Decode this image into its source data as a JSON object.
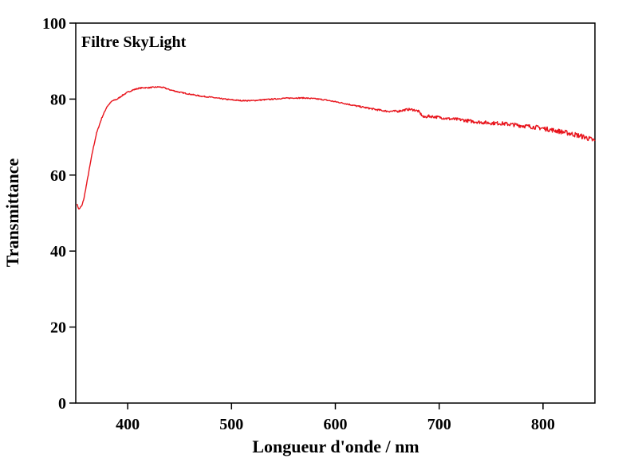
{
  "chart_data": {
    "type": "line",
    "annotation": "Filtre SkyLight",
    "xlabel": "Longueur d'onde / nm",
    "ylabel": "Transmittance",
    "xlim": [
      350,
      850
    ],
    "ylim": [
      0,
      100
    ],
    "x_ticks": [
      400,
      500,
      600,
      700,
      800
    ],
    "y_ticks": [
      0,
      20,
      40,
      60,
      80,
      100
    ],
    "grid": false,
    "series": [
      {
        "color": "#e8141c",
        "noise": true,
        "x": [
          351,
          353,
          356,
          358,
          362,
          366,
          370,
          375,
          380,
          385,
          390,
          395,
          400,
          405,
          410,
          415,
          420,
          425,
          430,
          435,
          440,
          450,
          460,
          470,
          480,
          490,
          500,
          510,
          520,
          530,
          540,
          550,
          560,
          570,
          580,
          590,
          600,
          610,
          620,
          630,
          640,
          650,
          660,
          670,
          675,
          680,
          685,
          690,
          700,
          710,
          720,
          730,
          740,
          750,
          760,
          770,
          780,
          790,
          800,
          810,
          820,
          830,
          840,
          845,
          850
        ],
        "values": [
          52.5,
          51.0,
          52.0,
          54.0,
          60.0,
          66.0,
          71.0,
          75.0,
          78.0,
          79.5,
          80.0,
          81.0,
          81.8,
          82.4,
          82.8,
          83.0,
          83.0,
          83.1,
          83.2,
          83.0,
          82.5,
          81.8,
          81.3,
          80.8,
          80.5,
          80.1,
          79.8,
          79.6,
          79.6,
          79.8,
          80.0,
          80.2,
          80.3,
          80.3,
          80.1,
          79.8,
          79.3,
          78.8,
          78.2,
          77.7,
          77.2,
          76.8,
          76.8,
          77.3,
          77.2,
          76.8,
          75.2,
          75.5,
          75.2,
          74.8,
          74.6,
          74.2,
          73.9,
          73.7,
          73.6,
          73.3,
          73.0,
          72.7,
          72.3,
          71.8,
          71.3,
          70.7,
          70.0,
          69.5,
          69.0
        ]
      }
    ]
  }
}
